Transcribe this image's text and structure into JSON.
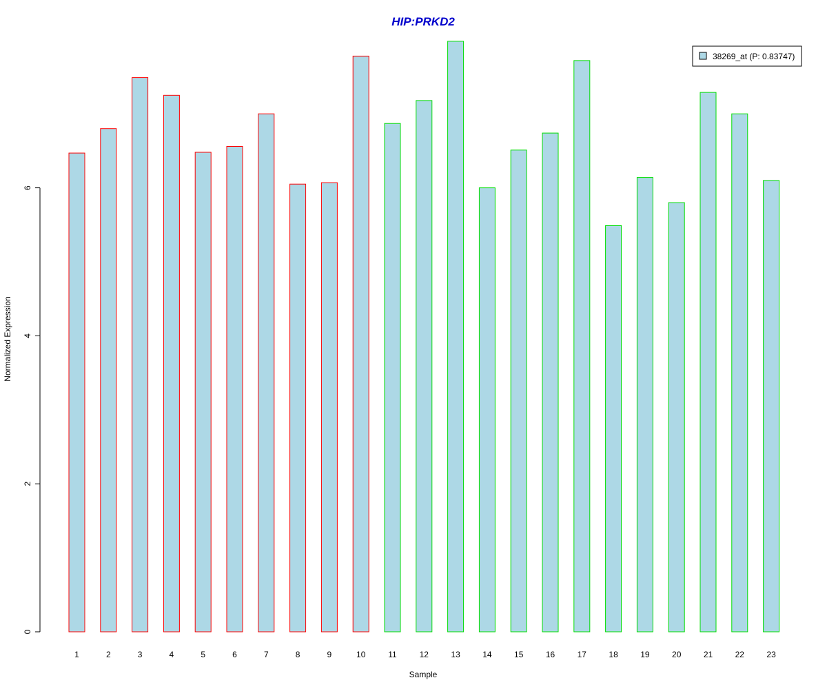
{
  "chart_data": {
    "type": "bar",
    "title": "HIP:PRKD2",
    "title_color": "#0000CC",
    "xlabel": "Sample",
    "ylabel": "Normalized Expression",
    "categories": [
      "1",
      "2",
      "3",
      "4",
      "5",
      "6",
      "7",
      "8",
      "9",
      "10",
      "11",
      "12",
      "13",
      "14",
      "15",
      "16",
      "17",
      "18",
      "19",
      "20",
      "21",
      "22",
      "23"
    ],
    "series": [
      {
        "name": "38269_at (P: 0.83747)",
        "values": [
          6.47,
          6.8,
          7.49,
          7.25,
          6.48,
          6.56,
          7.0,
          6.05,
          6.07,
          7.78,
          6.87,
          7.18,
          7.98,
          6.0,
          6.51,
          6.74,
          7.72,
          5.49,
          6.14,
          5.8,
          7.29,
          7.0,
          6.1
        ]
      }
    ],
    "groups": [
      {
        "samples": [
          1,
          2,
          3,
          4,
          5,
          6,
          7,
          8,
          9,
          10
        ],
        "border_color": "#FF0000"
      },
      {
        "samples": [
          11,
          12,
          13,
          14,
          15,
          16,
          17,
          18,
          19,
          20,
          21,
          22,
          23
        ],
        "border_color": "#00DD00"
      }
    ],
    "bar_fill": "#ADD8E6",
    "ylim": [
      0,
      8
    ],
    "yticks": [
      0,
      2,
      4,
      6
    ],
    "grid": false,
    "legend_position": "top-right"
  }
}
